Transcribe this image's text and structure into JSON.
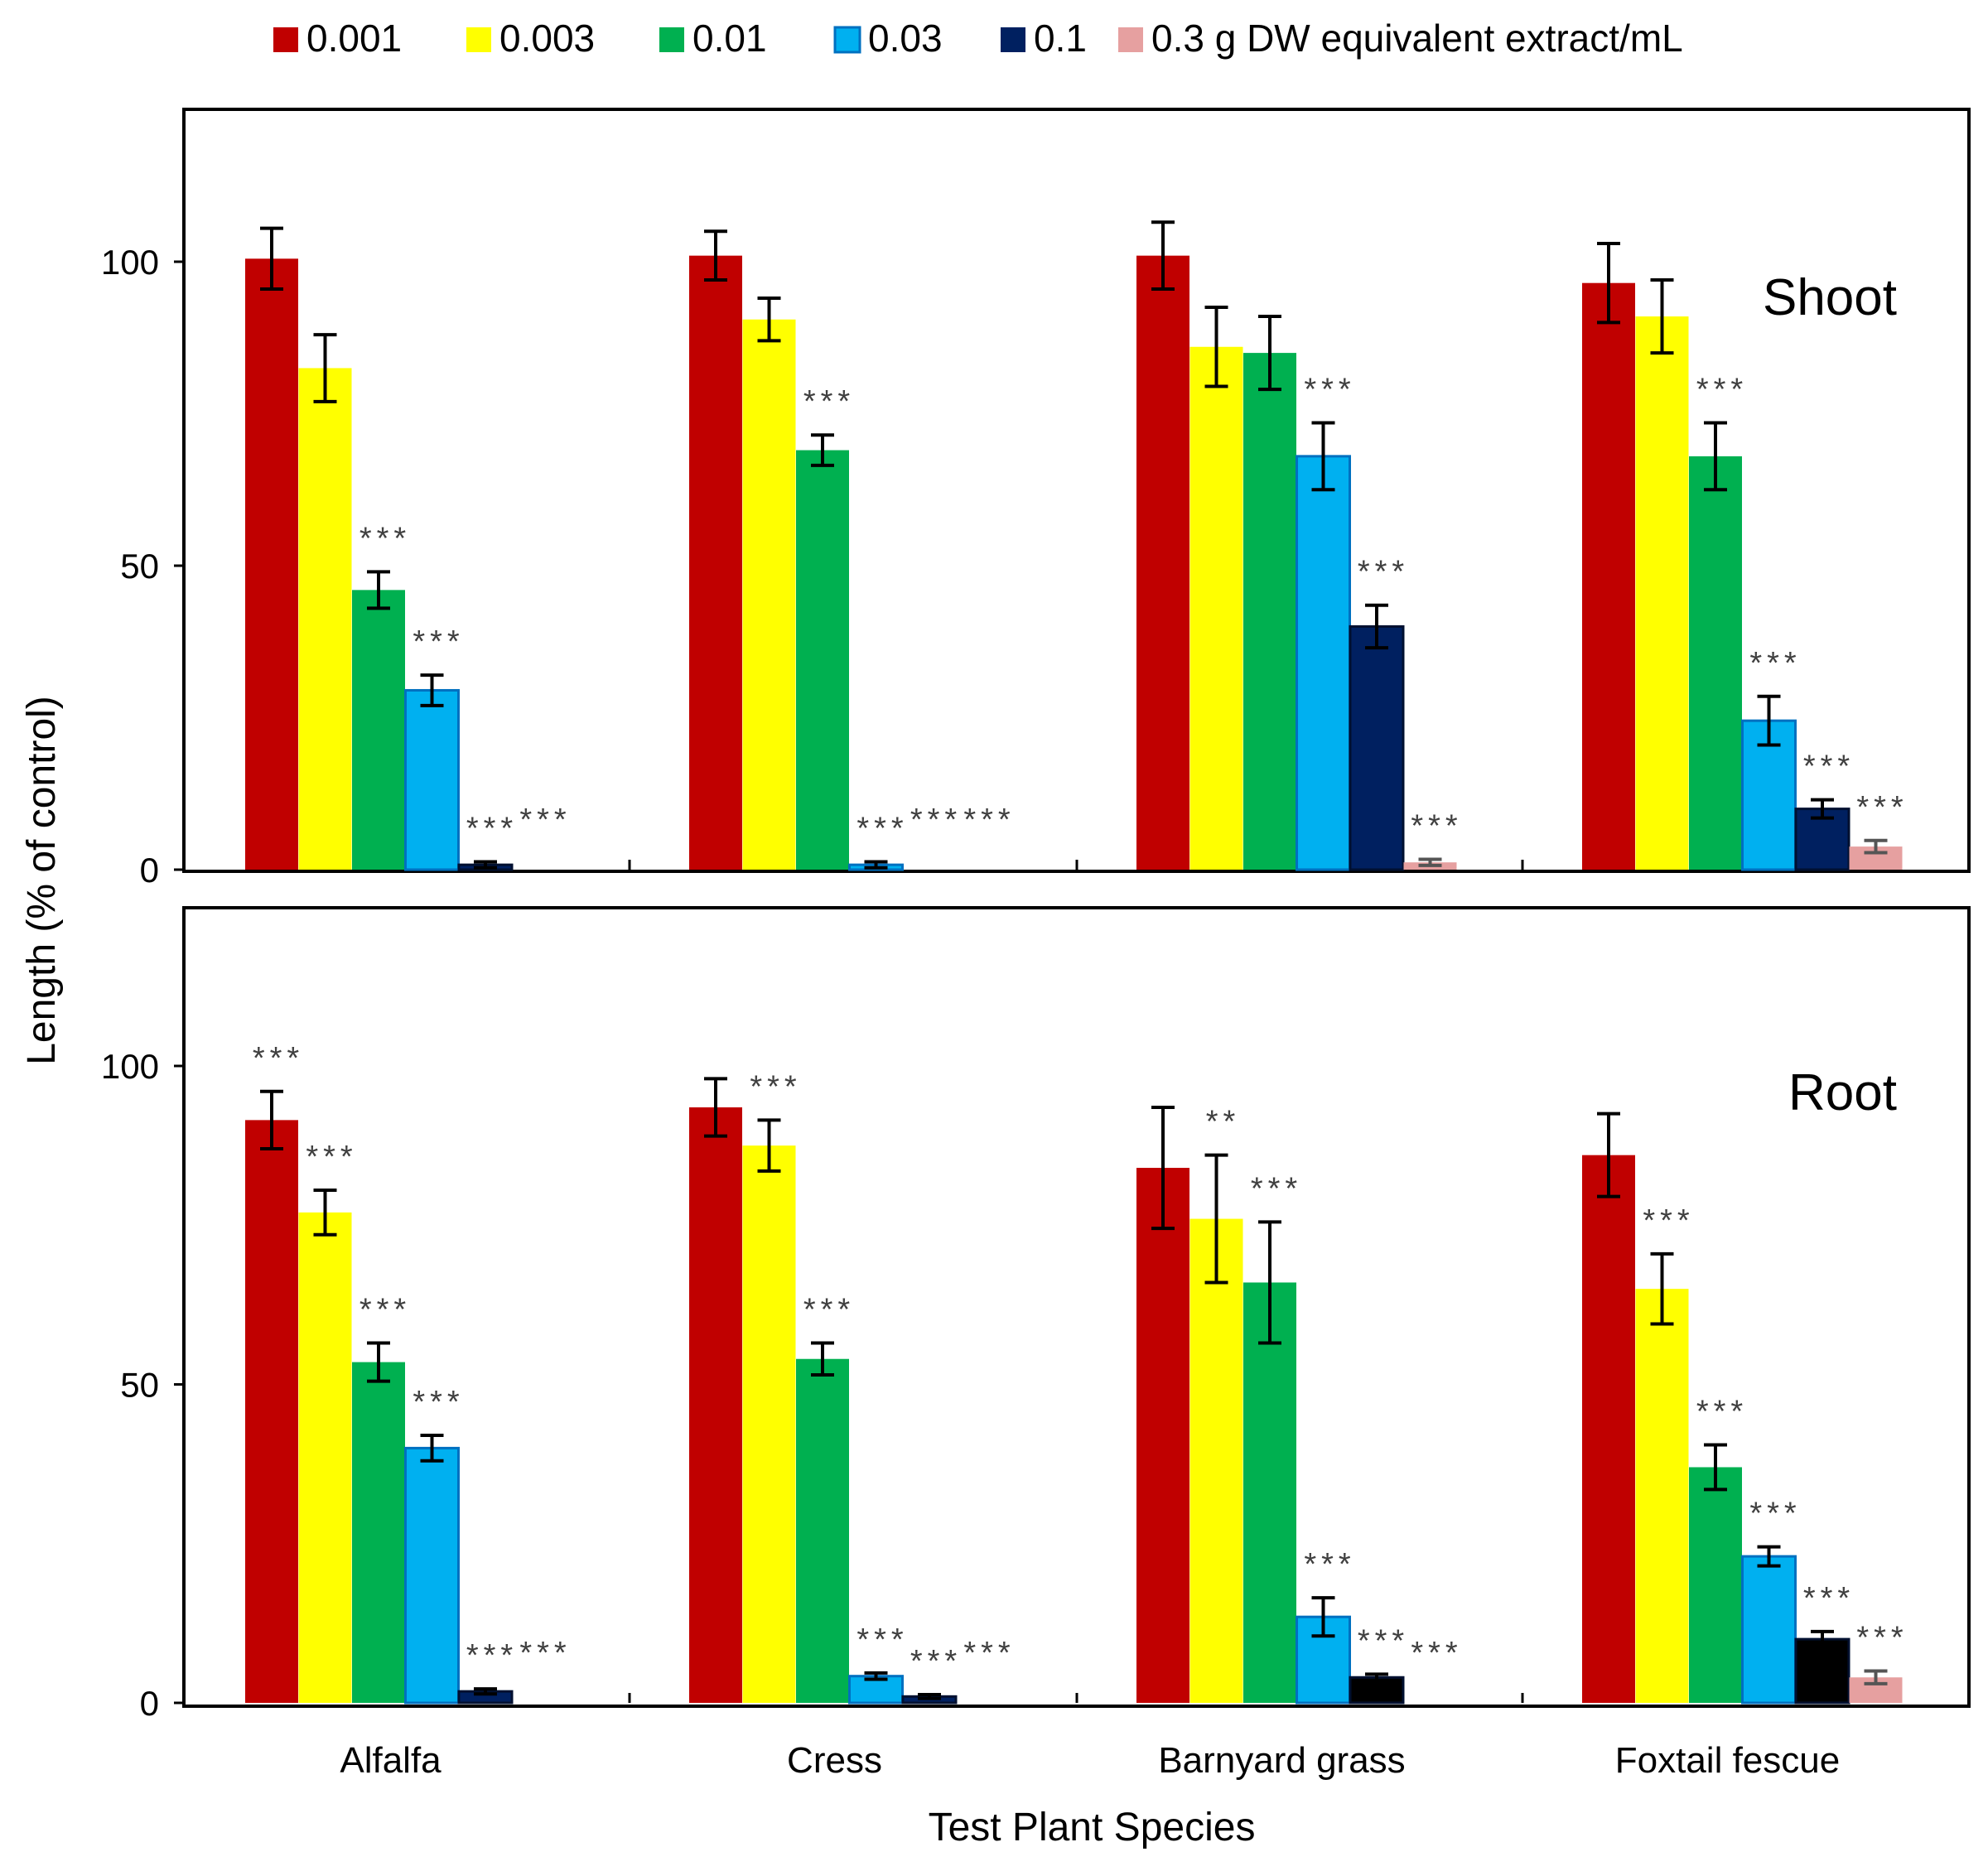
{
  "chart_data": {
    "type": "bar",
    "categories": [
      "Alfalfa",
      "Cress",
      "Barnyard grass",
      "Foxtail fescue"
    ],
    "xlabel": "Test Plant Species",
    "ylabel": "Length (% of control)",
    "ylim": [
      0,
      125
    ],
    "yticks": [
      0,
      50,
      100
    ],
    "legend_position": "top",
    "legend": [
      "0.001",
      "0.003",
      "0.01",
      "0.03",
      "0.1",
      "0.3 g DW equivalent extract/mL"
    ],
    "colors": [
      "#C00000",
      "#FFFF00",
      "#00B050",
      "#00B0F0",
      "#002060",
      "#E6A0A0"
    ],
    "panels": [
      {
        "label": "Shoot",
        "values": [
          [
            100.5,
            82.5,
            46,
            29.5,
            0.8,
            0
          ],
          [
            101,
            90.5,
            69,
            0.8,
            0,
            0
          ],
          [
            101,
            86,
            85,
            68,
            40,
            1.2
          ],
          [
            96.5,
            91,
            68,
            24.5,
            10,
            3.8
          ]
        ],
        "errors": [
          [
            5,
            5.5,
            3,
            2.5,
            0.5,
            0
          ],
          [
            4,
            3.5,
            2.5,
            0.5,
            0,
            0
          ],
          [
            5.5,
            6.5,
            6,
            5.5,
            3.5,
            0.5
          ],
          [
            6.5,
            6,
            5.5,
            4,
            1.5,
            1
          ]
        ],
        "significance": [
          [
            "",
            "",
            "***",
            "***",
            "***",
            "***"
          ],
          [
            "",
            "",
            "***",
            "***",
            "***",
            "***"
          ],
          [
            "",
            "",
            "",
            "***",
            "***",
            "***"
          ],
          [
            "",
            "",
            "***",
            "***",
            "***",
            "***"
          ]
        ]
      },
      {
        "label": "Root",
        "values": [
          [
            91.5,
            77,
            53.5,
            40,
            1.8,
            0
          ],
          [
            93.5,
            87.5,
            54,
            4.2,
            1,
            0
          ],
          [
            84,
            76,
            66,
            13.5,
            4,
            0
          ],
          [
            86,
            65,
            37,
            23,
            10,
            4
          ]
        ],
        "errors": [
          [
            4.5,
            3.5,
            3,
            2,
            0.4,
            0
          ],
          [
            4.5,
            4,
            2.5,
            0.5,
            0.3,
            0
          ],
          [
            9.5,
            10,
            9.5,
            3,
            0.5,
            0
          ],
          [
            6.5,
            5.5,
            3.5,
            1.5,
            1.2,
            1
          ]
        ],
        "significance": [
          [
            "***",
            "***",
            "***",
            "***",
            "***",
            "***"
          ],
          [
            "",
            "***",
            "***",
            "***",
            "***",
            "***"
          ],
          [
            "",
            "**",
            "***",
            "***",
            "***",
            "***"
          ],
          [
            "",
            "***",
            "***",
            "***",
            "***",
            "***"
          ]
        ]
      }
    ]
  }
}
